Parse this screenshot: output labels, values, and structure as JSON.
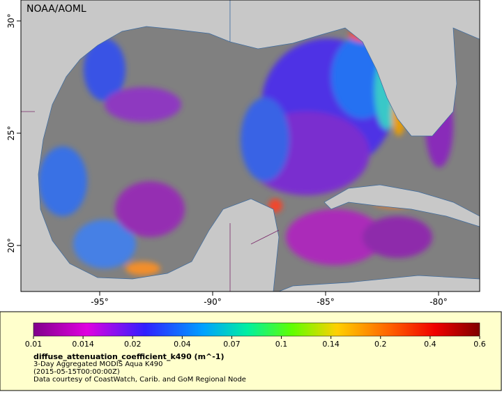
{
  "map": {
    "watermark": "NOAA/AOML",
    "lon_ticks": [
      {
        "value": -95,
        "label": "-95°"
      },
      {
        "value": -90,
        "label": "-90°"
      },
      {
        "value": -85,
        "label": "-85°"
      },
      {
        "value": -80,
        "label": "-80°"
      }
    ],
    "lat_ticks": [
      {
        "value": 30,
        "label": "30°"
      },
      {
        "value": 25,
        "label": "25°"
      },
      {
        "value": 20,
        "label": "20°"
      }
    ]
  },
  "legend": {
    "colorbar_ticks": [
      0.01,
      0.014,
      0.02,
      0.04,
      0.07,
      0.1,
      0.14,
      0.2,
      0.4,
      0.6
    ],
    "variable": "diffuse_attenuation_coefficient_k490 (m^-1)",
    "dataset": "3-Day Aggregated MODIS Aqua K490",
    "time": "(2015-05-15T00:00:00Z)",
    "credit": "Data courtesy of CoastWatch, Carib. and GoM Regional Node"
  }
}
